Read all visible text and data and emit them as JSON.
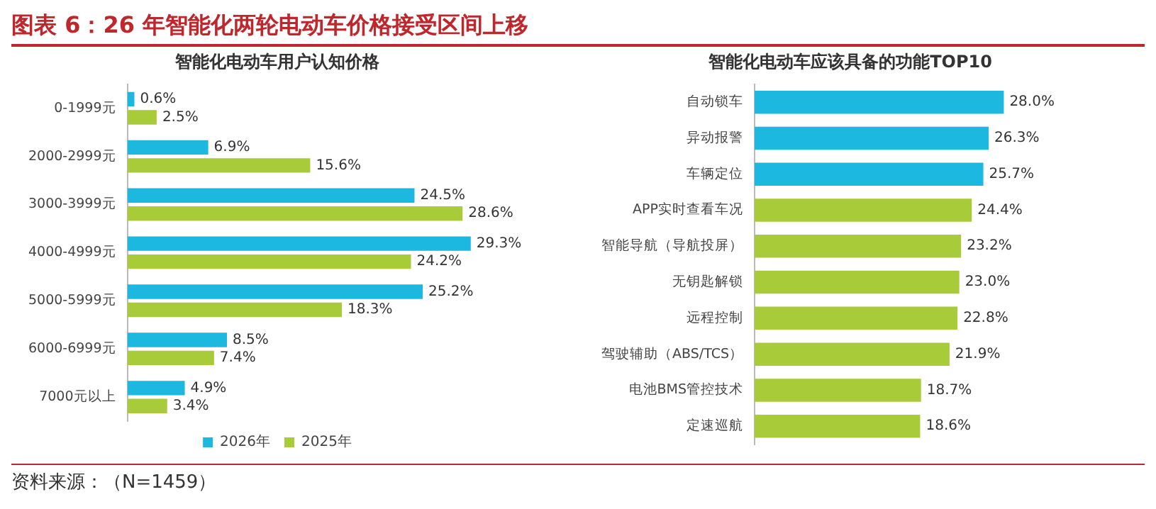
{
  "chart_data": [
    {
      "type": "bar",
      "orientation": "horizontal",
      "title": "智能化电动车用户认知价格",
      "categories": [
        "0-1999元",
        "2000-2999元",
        "3000-3999元",
        "4000-4999元",
        "5000-5999元",
        "6000-6999元",
        "7000元以上"
      ],
      "series": [
        {
          "name": "2026年",
          "color": "#1cb8df",
          "values": [
            0.6,
            6.9,
            24.5,
            29.3,
            25.2,
            8.5,
            4.9
          ],
          "value_labels": [
            "0.6%",
            "6.9%",
            "24.5%",
            "29.3%",
            "25.2%",
            "8.5%",
            "4.9%"
          ]
        },
        {
          "name": "2025年",
          "color": "#a8cb3a",
          "values": [
            2.5,
            15.6,
            28.6,
            24.2,
            18.3,
            7.4,
            3.4
          ],
          "value_labels": [
            "2.5%",
            "15.6%",
            "28.6%",
            "24.2%",
            "18.3%",
            "7.4%",
            "3.4%"
          ]
        }
      ],
      "legend": "bottom",
      "grid": false,
      "tick_labels": "y",
      "annotations": [
        "图表 6：26 年智能化两轮电动车价格接受区间上移",
        "资料来源：（N=1459）"
      ]
    },
    {
      "type": "bar",
      "orientation": "horizontal",
      "title": "智能化电动车应该具备的功能TOP10",
      "categories": [
        "自动锁车",
        "异动报警",
        "车辆定位",
        "APP实时查看车况",
        "智能导航（导航投屏）",
        "无钥匙解锁",
        "远程控制",
        "驾驶辅助（ABS/TCS）",
        "电池BMS管控技术",
        "定速巡航"
      ],
      "values": [
        28.0,
        26.3,
        25.7,
        24.4,
        23.2,
        23.0,
        22.8,
        21.9,
        18.7,
        18.6
      ],
      "value_labels": [
        "28.0%",
        "26.3%",
        "25.7%",
        "24.4%",
        "23.2%",
        "23.0%",
        "22.8%",
        "21.9%",
        "18.7%",
        "18.6%"
      ],
      "colors": [
        "#1cb8df",
        "#1cb8df",
        "#1cb8df",
        "#a8cb3a",
        "#a8cb3a",
        "#a8cb3a",
        "#a8cb3a",
        "#a8cb3a",
        "#a8cb3a",
        "#a8cb3a"
      ],
      "legend": false,
      "grid": false,
      "tick_labels": "y"
    }
  ]
}
